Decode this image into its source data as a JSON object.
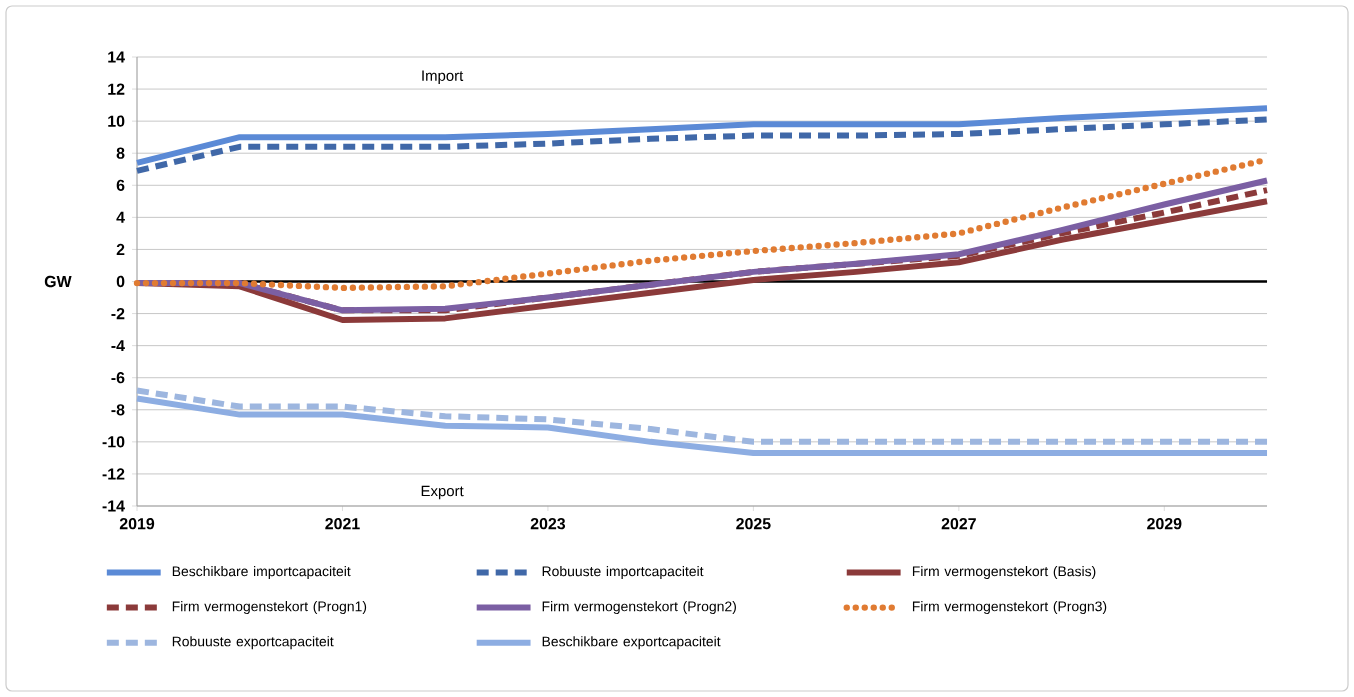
{
  "chart_data": {
    "type": "line",
    "ylabel": "GW",
    "x": [
      2019,
      2020,
      2021,
      2022,
      2023,
      2024,
      2025,
      2026,
      2027,
      2028,
      2029,
      2030
    ],
    "xlim": [
      2019,
      2030
    ],
    "xticks": [
      2019,
      2021,
      2023,
      2025,
      2027,
      2029
    ],
    "ylim": [
      -14,
      14
    ],
    "yticks": [
      -14,
      -12,
      -10,
      -8,
      -6,
      -4,
      -2,
      0,
      2,
      4,
      6,
      8,
      10,
      12,
      14
    ],
    "grid": "y",
    "legend": "bottom",
    "marker": "none",
    "ref_lines": [
      {
        "axis": "y",
        "value": 0,
        "color": "#000000"
      }
    ],
    "annotations": [
      "Import",
      "Export"
    ],
    "series": [
      {
        "name": "Beschikbare importcapaciteit",
        "color": "#5b8ad6",
        "line_style": "solid",
        "values": [
          7.4,
          9.0,
          9.0,
          9.0,
          9.2,
          9.5,
          9.8,
          9.8,
          9.8,
          10.2,
          10.5,
          10.8
        ]
      },
      {
        "name": "Robuuste importcapaciteit",
        "color": "#4068a8",
        "line_style": "dashed",
        "values": [
          6.9,
          8.4,
          8.4,
          8.4,
          8.6,
          8.9,
          9.1,
          9.1,
          9.2,
          9.5,
          9.8,
          10.1
        ]
      },
      {
        "name": "Firm vermogenstekort (Basis)",
        "color": "#8b3a3a",
        "line_style": "solid",
        "values": [
          -0.1,
          -0.3,
          -2.4,
          -2.3,
          -1.5,
          -0.7,
          0.1,
          0.6,
          1.2,
          2.6,
          3.8,
          5.0
        ]
      },
      {
        "name": "Firm vermogenstekort (Progn1)",
        "color": "#8b3a3a",
        "line_style": "dashed",
        "values": [
          -0.1,
          -0.1,
          -1.8,
          -1.8,
          -1.0,
          -0.2,
          0.6,
          1.1,
          1.6,
          3.0,
          4.3,
          5.7
        ]
      },
      {
        "name": "Firm vermogenstekort (Progn2)",
        "color": "#7b5fa3",
        "line_style": "solid",
        "values": [
          -0.1,
          -0.1,
          -1.8,
          -1.7,
          -1.0,
          -0.2,
          0.6,
          1.1,
          1.7,
          3.2,
          4.8,
          6.3
        ]
      },
      {
        "name": "Firm vermogenstekort (Progn3)",
        "color": "#e07b32",
        "line_style": "dotted",
        "values": [
          -0.1,
          -0.1,
          -0.4,
          -0.3,
          0.5,
          1.3,
          1.9,
          2.4,
          3.0,
          4.6,
          6.1,
          7.6
        ]
      },
      {
        "name": "Robuuste exportcapaciteit",
        "color": "#9db6df",
        "line_style": "dashed",
        "values": [
          -6.8,
          -7.8,
          -7.8,
          -8.4,
          -8.6,
          -9.2,
          -10.0,
          -10.0,
          -10.0,
          -10.0,
          -10.0,
          -10.0
        ]
      },
      {
        "name": "Beschikbare exportcapaciteit",
        "color": "#8dadE2",
        "line_style": "solid",
        "values": [
          -7.3,
          -8.3,
          -8.3,
          -9.0,
          -9.1,
          -10.0,
          -10.7,
          -10.7,
          -10.7,
          -10.7,
          -10.7,
          -10.7
        ]
      }
    ]
  }
}
